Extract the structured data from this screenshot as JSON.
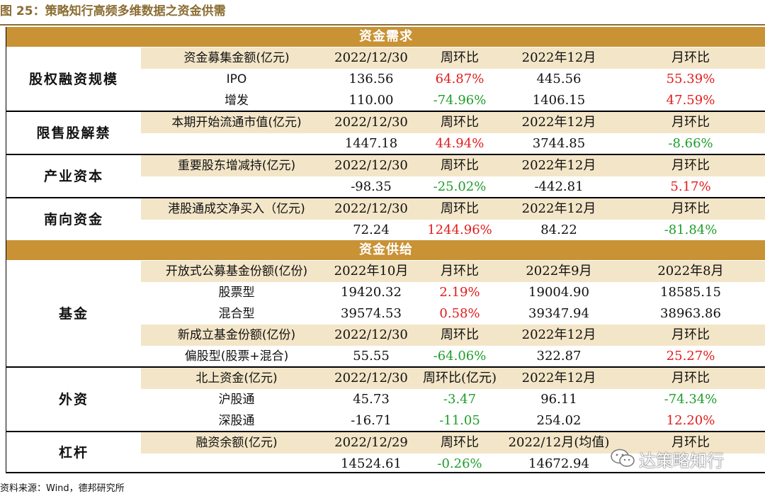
{
  "figure": {
    "title": "图 25：策略知行高频多维数据之资金供需"
  },
  "demand": {
    "header": "资金需求",
    "equity": {
      "category": "股权融资规模",
      "header": [
        "资金募集金额(亿元)",
        "2022/12/30",
        "周环比",
        "2022年12月",
        "月环比"
      ],
      "rows": [
        [
          "IPO",
          "136.56",
          "64.87%",
          "445.56",
          "55.39%"
        ],
        [
          "增发",
          "110.00",
          "-74.96%",
          "1406.15",
          "47.59%"
        ]
      ]
    },
    "unlock": {
      "category": "限售股解禁",
      "header": [
        "本期开始流通市值(亿元)",
        "2022/12/30",
        "周环比",
        "2022年12月",
        "月环比"
      ],
      "row": [
        "1447.18",
        "44.94%",
        "3744.85",
        "-8.66%"
      ]
    },
    "industry": {
      "category": "产业资本",
      "header": [
        "重要股东增减持(亿元)",
        "2022/12/30",
        "周环比",
        "2022年12月",
        "月环比"
      ],
      "row": [
        "-98.35",
        "-25.02%",
        "-442.81",
        "5.17%"
      ]
    },
    "southbound": {
      "category": "南向资金",
      "header": [
        "港股通成交净买入（亿元)",
        "2022/12/30",
        "周环比",
        "2022年12月",
        "月环比"
      ],
      "row": [
        "72.24",
        "1244.96%",
        "84.22",
        "-81.84%"
      ]
    }
  },
  "supply": {
    "header": "资金供给",
    "fund": {
      "category": "基金",
      "header1": [
        "开放式公募基金份额(亿份)",
        "2022年10月",
        "月环比",
        "2022年9月",
        "2022年8月"
      ],
      "rows1": [
        [
          "股票型",
          "19420.32",
          "2.19%",
          "19004.90",
          "18585.15"
        ],
        [
          "混合型",
          "39574.53",
          "0.58%",
          "39347.94",
          "38963.86"
        ]
      ],
      "header2": [
        "新成立基金份额(亿份)",
        "2022/12/30",
        "周环比",
        "2022年12月",
        "月环比"
      ],
      "row2": [
        "偏股型(股票+混合)",
        "55.55",
        "-64.06%",
        "322.87",
        "25.27%"
      ]
    },
    "foreign": {
      "category": "外资",
      "header": [
        "北上资金(亿元)",
        "2022/12/30",
        "周环比(亿元)",
        "2022年12月",
        "月环比"
      ],
      "rows": [
        [
          "沪股通",
          "45.73",
          "-3.47",
          "96.11",
          "-74.34%"
        ],
        [
          "深股通",
          "-16.71",
          "-11.05",
          "254.02",
          "12.20%"
        ]
      ]
    },
    "leverage": {
      "category": "杠杆",
      "header": [
        "融资余额(亿元)",
        "2022/12/29",
        "周环比",
        "2022/12月(均值)",
        "月环比"
      ],
      "row": [
        "14524.61",
        "-0.26%",
        "14672.94",
        ""
      ]
    }
  },
  "footer": {
    "source": "资料来源：Wind，德邦研究所",
    "watermark": "达策略知行"
  },
  "colors": {
    "positive": "#E11B1B",
    "negative": "#1E9D2A",
    "section": "#C89235",
    "band": "#F3E5C7",
    "title": "#8B6D33"
  }
}
